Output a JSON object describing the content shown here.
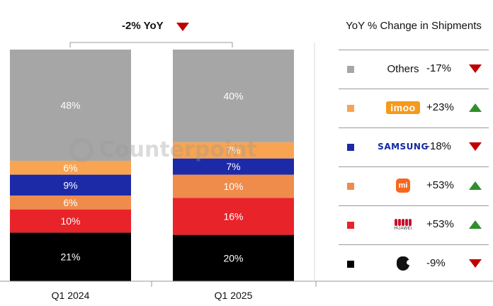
{
  "chart_data": {
    "type": "bar",
    "stacked": true,
    "categories": [
      "Q1 2024",
      "Q1 2025"
    ],
    "series": [
      {
        "name": "Apple",
        "values": [
          21,
          20
        ],
        "color": "#000000",
        "change_label": "-9%",
        "direction": "down"
      },
      {
        "name": "Huawei",
        "values": [
          10,
          16
        ],
        "color": "#e8232a",
        "change_label": "+53%",
        "direction": "up"
      },
      {
        "name": "Xiaomi",
        "values": [
          6,
          10
        ],
        "color": "#ef8c4c",
        "change_label": "+53%",
        "direction": "up"
      },
      {
        "name": "Samsung",
        "values": [
          9,
          7
        ],
        "color": "#1c2aa8",
        "change_label": "-18%",
        "direction": "down"
      },
      {
        "name": "imoo",
        "values": [
          6,
          7
        ],
        "color": "#f8a451",
        "change_label": "+23%",
        "direction": "up"
      },
      {
        "name": "Others",
        "values": [
          48,
          40
        ],
        "color": "#a6a6a6",
        "change_label": "-17%",
        "direction": "down"
      }
    ],
    "value_labels": [
      [
        "21%",
        "10%",
        "6%",
        "9%",
        "6%",
        "48%"
      ],
      [
        "20%",
        "16%",
        "10%",
        "7%",
        "7%",
        "40%"
      ]
    ],
    "ylim": [
      0,
      100
    ],
    "grid": false,
    "title": "",
    "xlabel": "",
    "ylabel": "",
    "annotation": {
      "text": "-2% YoY",
      "direction": "down"
    },
    "legend": {
      "title": "YoY % Change in Shipments",
      "placement": "right"
    }
  },
  "legend_rows": [
    {
      "brand": "Others",
      "brand_style": "text",
      "change": "-17%",
      "direction": "down",
      "color": "#a6a6a6"
    },
    {
      "brand": "imoo",
      "brand_style": "imoo-logo",
      "change": "+23%",
      "direction": "up",
      "color": "#f8a451"
    },
    {
      "brand": "SAMSUNG",
      "brand_style": "samsung-logo",
      "change": "-18%",
      "direction": "down",
      "color": "#1c2aa8"
    },
    {
      "brand": "mi",
      "brand_style": "xiaomi-logo",
      "change": "+53%",
      "direction": "up",
      "color": "#ef8c4c"
    },
    {
      "brand": "HUAWEI",
      "brand_style": "huawei-logo",
      "change": "+53%",
      "direction": "up",
      "color": "#e8232a"
    },
    {
      "brand": "Apple",
      "brand_style": "apple-logo",
      "change": "-9%",
      "direction": "down",
      "color": "#000000"
    }
  ],
  "watermark": "Counterpoint"
}
